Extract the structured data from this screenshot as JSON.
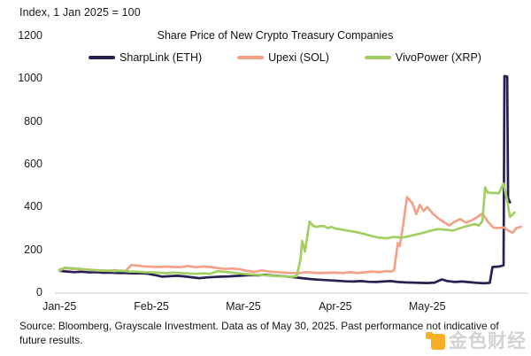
{
  "header": {
    "index_note": "Index, 1 Jan 2025 = 100"
  },
  "theme": {
    "axis_color": "#d9d9d9",
    "text_color": "#1a1a1a",
    "background": "#ffffff"
  },
  "chart_data": {
    "type": "line",
    "title": "Share Price of New Crypto Treasury Companies",
    "index_note": "Index, 1 Jan 2025 = 100",
    "grid": false,
    "legend_position": "top-center",
    "ylim": [
      0,
      1200
    ],
    "y_ticks": [
      0,
      200,
      400,
      600,
      800,
      1000,
      1200
    ],
    "x_ticks": [
      "Jan-25",
      "Feb-25",
      "Mar-25",
      "Apr-25",
      "May-25"
    ],
    "x_tick_positions": [
      0,
      1,
      2,
      3,
      4
    ],
    "xlim": [
      -0.05,
      5.1
    ],
    "x_unit": "months since 1 Jan 2025",
    "series": [
      {
        "name": "SharpLink (ETH)",
        "color": "#262150",
        "points": [
          [
            0,
            100
          ],
          [
            0.08,
            97
          ],
          [
            0.16,
            94
          ],
          [
            0.24,
            96
          ],
          [
            0.32,
            93
          ],
          [
            0.4,
            94
          ],
          [
            0.48,
            91
          ],
          [
            0.56,
            92
          ],
          [
            0.64,
            90
          ],
          [
            0.72,
            90
          ],
          [
            0.8,
            88
          ],
          [
            0.88,
            89
          ],
          [
            0.96,
            87
          ],
          [
            1.04,
            80
          ],
          [
            1.12,
            73
          ],
          [
            1.2,
            75
          ],
          [
            1.28,
            77
          ],
          [
            1.36,
            74
          ],
          [
            1.44,
            70
          ],
          [
            1.52,
            66
          ],
          [
            1.6,
            69
          ],
          [
            1.68,
            71
          ],
          [
            1.76,
            73
          ],
          [
            1.84,
            74
          ],
          [
            1.92,
            76
          ],
          [
            2.0,
            78
          ],
          [
            2.08,
            80
          ],
          [
            2.16,
            79
          ],
          [
            2.24,
            81
          ],
          [
            2.32,
            78
          ],
          [
            2.4,
            76
          ],
          [
            2.48,
            73
          ],
          [
            2.56,
            70
          ],
          [
            2.64,
            66
          ],
          [
            2.72,
            62
          ],
          [
            2.8,
            59
          ],
          [
            2.88,
            57
          ],
          [
            2.96,
            55
          ],
          [
            3.04,
            53
          ],
          [
            3.12,
            51
          ],
          [
            3.2,
            50
          ],
          [
            3.28,
            52
          ],
          [
            3.36,
            49
          ],
          [
            3.44,
            48
          ],
          [
            3.52,
            50
          ],
          [
            3.6,
            52
          ],
          [
            3.68,
            48
          ],
          [
            3.76,
            46
          ],
          [
            3.84,
            45
          ],
          [
            3.92,
            44
          ],
          [
            4.0,
            43
          ],
          [
            4.08,
            45
          ],
          [
            4.16,
            60
          ],
          [
            4.22,
            52
          ],
          [
            4.3,
            48
          ],
          [
            4.38,
            50
          ],
          [
            4.46,
            47
          ],
          [
            4.54,
            44
          ],
          [
            4.62,
            42
          ],
          [
            4.68,
            44
          ],
          [
            4.71,
            118
          ],
          [
            4.78,
            120
          ],
          [
            4.83,
            126
          ],
          [
            4.84,
            1010
          ],
          [
            4.87,
            1008
          ],
          [
            4.88,
            440
          ],
          [
            4.9,
            420
          ]
        ]
      },
      {
        "name": "Upexi (SOL)",
        "color": "#F4A188",
        "points": [
          [
            0,
            105
          ],
          [
            0.06,
            112
          ],
          [
            0.12,
            110
          ],
          [
            0.2,
            108
          ],
          [
            0.28,
            105
          ],
          [
            0.36,
            103
          ],
          [
            0.44,
            102
          ],
          [
            0.52,
            100
          ],
          [
            0.6,
            103
          ],
          [
            0.66,
            100
          ],
          [
            0.72,
            99
          ],
          [
            0.78,
            127
          ],
          [
            0.84,
            125
          ],
          [
            0.92,
            121
          ],
          [
            1.0,
            119
          ],
          [
            1.08,
            118
          ],
          [
            1.16,
            120
          ],
          [
            1.24,
            118
          ],
          [
            1.32,
            117
          ],
          [
            1.4,
            123
          ],
          [
            1.48,
            117
          ],
          [
            1.56,
            120
          ],
          [
            1.64,
            118
          ],
          [
            1.72,
            113
          ],
          [
            1.8,
            109
          ],
          [
            1.88,
            111
          ],
          [
            1.96,
            107
          ],
          [
            2.04,
            100
          ],
          [
            2.12,
            95
          ],
          [
            2.2,
            102
          ],
          [
            2.28,
            97
          ],
          [
            2.36,
            94
          ],
          [
            2.44,
            92
          ],
          [
            2.52,
            90
          ],
          [
            2.6,
            89
          ],
          [
            2.68,
            94
          ],
          [
            2.76,
            91
          ],
          [
            2.84,
            90
          ],
          [
            2.92,
            91
          ],
          [
            3.0,
            92
          ],
          [
            3.08,
            90
          ],
          [
            3.16,
            94
          ],
          [
            3.24,
            90
          ],
          [
            3.32,
            93
          ],
          [
            3.4,
            97
          ],
          [
            3.48,
            94
          ],
          [
            3.56,
            99
          ],
          [
            3.6,
            96
          ],
          [
            3.64,
            103
          ],
          [
            3.68,
            230
          ],
          [
            3.7,
            215
          ],
          [
            3.73,
            290
          ],
          [
            3.78,
            445
          ],
          [
            3.84,
            415
          ],
          [
            3.88,
            365
          ],
          [
            3.92,
            408
          ],
          [
            3.96,
            380
          ],
          [
            4.0,
            398
          ],
          [
            4.06,
            368
          ],
          [
            4.12,
            345
          ],
          [
            4.18,
            328
          ],
          [
            4.24,
            312
          ],
          [
            4.3,
            330
          ],
          [
            4.36,
            342
          ],
          [
            4.42,
            325
          ],
          [
            4.48,
            335
          ],
          [
            4.54,
            350
          ],
          [
            4.6,
            368
          ],
          [
            4.66,
            330
          ],
          [
            4.72,
            302
          ],
          [
            4.78,
            300
          ],
          [
            4.84,
            303
          ],
          [
            4.88,
            288
          ],
          [
            4.93,
            278
          ],
          [
            4.97,
            300
          ],
          [
            5.02,
            306
          ]
        ]
      },
      {
        "name": "VivoPower (XRP)",
        "color": "#A2CE63",
        "points": [
          [
            0,
            100
          ],
          [
            0.06,
            116
          ],
          [
            0.12,
            112
          ],
          [
            0.2,
            110
          ],
          [
            0.28,
            107
          ],
          [
            0.36,
            104
          ],
          [
            0.44,
            102
          ],
          [
            0.52,
            101
          ],
          [
            0.6,
            99
          ],
          [
            0.68,
            101
          ],
          [
            0.76,
            97
          ],
          [
            0.84,
            96
          ],
          [
            0.92,
            94
          ],
          [
            1.0,
            93
          ],
          [
            1.08,
            91
          ],
          [
            1.16,
            89
          ],
          [
            1.24,
            92
          ],
          [
            1.32,
            90
          ],
          [
            1.4,
            88
          ],
          [
            1.48,
            86
          ],
          [
            1.56,
            88
          ],
          [
            1.64,
            86
          ],
          [
            1.72,
            98
          ],
          [
            1.8,
            95
          ],
          [
            1.88,
            92
          ],
          [
            1.96,
            88
          ],
          [
            2.04,
            85
          ],
          [
            2.12,
            82
          ],
          [
            2.2,
            80
          ],
          [
            2.28,
            78
          ],
          [
            2.36,
            76
          ],
          [
            2.44,
            74
          ],
          [
            2.52,
            72
          ],
          [
            2.58,
            75
          ],
          [
            2.62,
            150
          ],
          [
            2.64,
            240
          ],
          [
            2.67,
            190
          ],
          [
            2.72,
            330
          ],
          [
            2.76,
            310
          ],
          [
            2.8,
            305
          ],
          [
            2.84,
            310
          ],
          [
            2.88,
            308
          ],
          [
            2.92,
            300
          ],
          [
            2.96,
            305
          ],
          [
            3.0,
            298
          ],
          [
            3.08,
            292
          ],
          [
            3.16,
            286
          ],
          [
            3.24,
            280
          ],
          [
            3.32,
            272
          ],
          [
            3.4,
            262
          ],
          [
            3.48,
            255
          ],
          [
            3.56,
            252
          ],
          [
            3.64,
            258
          ],
          [
            3.72,
            255
          ],
          [
            3.8,
            262
          ],
          [
            3.88,
            270
          ],
          [
            3.96,
            278
          ],
          [
            4.04,
            288
          ],
          [
            4.12,
            295
          ],
          [
            4.2,
            292
          ],
          [
            4.28,
            288
          ],
          [
            4.36,
            300
          ],
          [
            4.44,
            310
          ],
          [
            4.52,
            318
          ],
          [
            4.56,
            312
          ],
          [
            4.6,
            332
          ],
          [
            4.63,
            490
          ],
          [
            4.66,
            465
          ],
          [
            4.78,
            463
          ],
          [
            4.83,
            508
          ],
          [
            4.87,
            428
          ],
          [
            4.9,
            352
          ],
          [
            4.95,
            372
          ]
        ]
      }
    ]
  },
  "footer": {
    "source": "Source: Bloomberg, Grayscale Investment. Data as of May 30, 2025. Past performance not indicative of future results."
  },
  "watermark": {
    "text": "金色财经",
    "logo_color": "#F8A200",
    "text_color": "#cbcbcb"
  }
}
